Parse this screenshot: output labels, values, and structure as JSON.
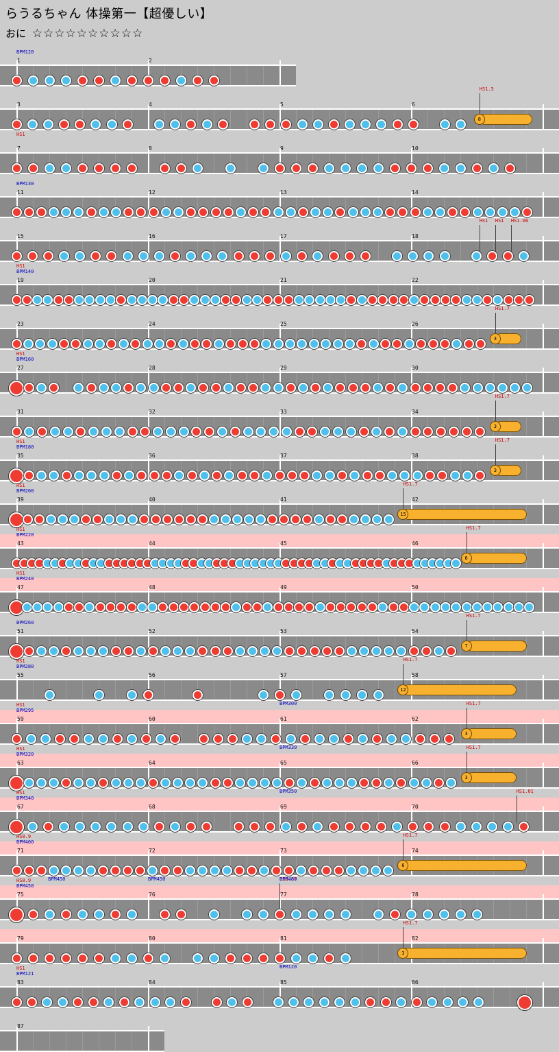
{
  "title": "らうるちゃん 体操第一【超優しい】",
  "course_label": "おに",
  "stars": "☆☆☆☆☆☆☆☆☆☆",
  "colors": {
    "don": "#ee3c32",
    "ka": "#4fc0ec",
    "roll": "#f7b12e",
    "lane": "#8a8a8a",
    "gogo": "#ffc4c4",
    "hs": "#d00000",
    "bpm": "#0000c0"
  },
  "rows": [
    {
      "width": 408,
      "measures": [
        "1",
        "2"
      ],
      "pattern": "rbbbrrbrrrbrr",
      "tags": [
        {
          "type": "bpm",
          "text": "BPM120",
          "at": 0
        }
      ]
    },
    {
      "measures": [
        "3",
        "4",
        "5",
        "6"
      ],
      "pattern": "rbbrrbbr bbrbr rrrbbrbbbrr bb",
      "roll": {
        "count": "8",
        "start": 0.88,
        "end": 0.98
      },
      "tags": [
        {
          "type": "hs",
          "text": "HS1.5",
          "at": 0.88
        }
      ]
    },
    {
      "measures": [
        "7",
        "8",
        "9",
        "10"
      ],
      "pattern": "rrbbrrrr rrb b brrrbbbbrrrbbrbr",
      "tags": [
        {
          "type": "hs",
          "text": "HS1",
          "at": 0
        }
      ]
    },
    {
      "measures": [
        "11",
        "12",
        "13",
        "14"
      ],
      "pattern": "rrrbbbrbbrrrbbrrrrbrrbbrbbrbbbrrrbbrrbbbbr",
      "tags": [
        {
          "type": "bpm",
          "text": "BPM130",
          "at": 0
        }
      ]
    },
    {
      "measures": [
        "15",
        "16",
        "17",
        "18"
      ],
      "pattern": "rrrbbrrbbbrbbbrrrbrbrrr bbbb brrb",
      "tags": [
        {
          "type": "hs",
          "text": "HS1",
          "at": 0.88
        },
        {
          "type": "hs",
          "text": "HS1",
          "at": 0.91
        },
        {
          "type": "hs",
          "text": "HS1.06",
          "at": 0.94
        }
      ]
    },
    {
      "measures": [
        "19",
        "20",
        "21",
        "22"
      ],
      "pattern": "rrbbrrbbbbrbbbbrrbbbrrbbrrrbbbbbrbrrrrbrrrrbbrbrrr",
      "tags": [
        {
          "type": "hs",
          "text": "HS1",
          "at": 0
        },
        {
          "type": "bpm",
          "text": "BPM140",
          "at": 0
        }
      ]
    },
    {
      "measures": [
        "23",
        "24",
        "25",
        "26"
      ],
      "pattern": "rbbbrrbbrbrbbrbrrbrrrbbbbbbbbrbrrbrrrbrr",
      "roll": {
        "count": "3",
        "start": 0.91,
        "end": 0.96
      },
      "tags": [
        {
          "type": "hs",
          "text": "HS1.7",
          "at": 0.91
        }
      ]
    },
    {
      "measures": [
        "27",
        "28",
        "29",
        "30"
      ],
      "pattern": "Rrbr brbbrbbrrbrrbrrbbrbrbrrrbrbrrrrbbbbbb",
      "tags": [
        {
          "type": "hs",
          "text": "HS1",
          "at": 0
        },
        {
          "type": "bpm",
          "text": "BPM160",
          "at": 0
        }
      ]
    },
    {
      "measures": [
        "31",
        "32",
        "33",
        "34"
      ],
      "pattern": "rbrbbrbbbrrbbbrrbrbbbbrrbbbrbrbrrrrrr",
      "roll": {
        "count": "3",
        "start": 0.91,
        "end": 0.96
      },
      "tags": [
        {
          "type": "hs",
          "text": "HS1.7",
          "at": 0.91
        }
      ]
    },
    {
      "measures": [
        "35",
        "36",
        "37",
        "38"
      ],
      "pattern": "Rrbbrbbbrbrrrbrbrbrrbrrrbbrbrrbbbrrbbr",
      "roll": {
        "count": "3",
        "start": 0.91,
        "end": 0.96
      },
      "tags": [
        {
          "type": "hs",
          "text": "HS1",
          "at": 0
        },
        {
          "type": "bpm",
          "text": "BPM180",
          "at": 0
        },
        {
          "type": "hs",
          "text": "HS1.7",
          "at": 0.91
        }
      ]
    },
    {
      "measures": [
        "39",
        "40",
        "41",
        "42"
      ],
      "pattern": "Rrrbbbrrbbbrrrrrrbbbbbrrrrbrrbbbb",
      "roll": {
        "count": "15",
        "start": 0.735,
        "end": 0.97
      },
      "tags": [
        {
          "type": "hs",
          "text": "HS1",
          "at": 0
        },
        {
          "type": "bpm",
          "text": "BPM200",
          "at": 0
        },
        {
          "type": "hs",
          "text": "HS1.7",
          "at": 0.735
        }
      ]
    },
    {
      "gogo": true,
      "measures": [
        "43",
        "44",
        "45",
        "46"
      ],
      "pattern": "rrrrbbrbbrbbrrrrrrbbbbrrbbrrrbbbbbbrrrrbbrbbrrrrbrrrbbbbbb",
      "roll": {
        "count": "6",
        "start": 0.855,
        "end": 0.97
      },
      "tags": [
        {
          "type": "hs",
          "text": "HS1",
          "at": 0
        },
        {
          "type": "bpm",
          "text": "BPM220",
          "at": 0
        },
        {
          "type": "hs",
          "text": "HS1.7",
          "at": 0.855
        }
      ]
    },
    {
      "gogo": true,
      "measures": [
        "47",
        "48",
        "49",
        "50"
      ],
      "pattern": "Rbbbbrrbrrrrbbrrrrrrrbrrbrrrrbrrrrrbrrbbbbbbbbbbbb",
      "tags": [
        {
          "type": "hs",
          "text": "HS1",
          "at": 0
        },
        {
          "type": "bpm",
          "text": "BPM240",
          "at": 0
        }
      ]
    },
    {
      "measures": [
        "51",
        "52",
        "53",
        "54"
      ],
      "pattern": "Rrbbrbbbrrbrbbbrrrbbbbrrrrrbbbbbrrbr",
      "roll": {
        "count": "7",
        "start": 0.855,
        "end": 0.97
      },
      "tags": [
        {
          "type": "bpm",
          "text": "BPM260",
          "at": 0
        },
        {
          "type": "hs",
          "text": "HS1.7",
          "at": 0.855
        }
      ]
    },
    {
      "measures": [
        "55",
        "56",
        "57",
        "58"
      ],
      "pattern": "  b  b br  r   brb bbbb",
      "roll": {
        "count": "12",
        "start": 0.735,
        "end": 0.95
      },
      "tags": [
        {
          "type": "hs",
          "text": "HS1",
          "at": 0
        },
        {
          "type": "bpm",
          "text": "BPM280",
          "at": 0
        },
        {
          "type": "hs",
          "text": "HS1.7",
          "at": 0.735
        }
      ]
    },
    {
      "gogo": true,
      "measures": [
        "59",
        "60",
        "61",
        "62"
      ],
      "pattern": "rbbrrbbrbrbr rrrbbrbrbbrbrbbrrr",
      "roll": {
        "count": "3",
        "start": 0.855,
        "end": 0.95
      },
      "tags": [
        {
          "type": "hs",
          "text": "HS1",
          "at": 0
        },
        {
          "type": "bpm",
          "text": "BPM295",
          "at": 0
        },
        {
          "type": "bpm",
          "text": "BPM300",
          "at": 0.5
        },
        {
          "type": "hs",
          "text": "HS1.7",
          "at": 0.855
        }
      ]
    },
    {
      "gogo": true,
      "measures": [
        "63",
        "64",
        "65",
        "66"
      ],
      "pattern": "Rbbbrbbrbbbrbbbbrrbbbbrbrbbbrrbrbbrb",
      "roll": {
        "count": "3",
        "start": 0.855,
        "end": 0.95
      },
      "tags": [
        {
          "type": "hs",
          "text": "HS1",
          "at": 0
        },
        {
          "type": "bpm",
          "text": "BPM320",
          "at": 0
        },
        {
          "type": "bpm",
          "text": "BPM330",
          "at": 0.5
        },
        {
          "type": "hs",
          "text": "HS1.7",
          "at": 0.855
        }
      ]
    },
    {
      "gogo": true,
      "measures": [
        "67",
        "68",
        "69",
        "70"
      ],
      "pattern": "Rbrbbbbbbrbrr rrrbrbrrrrbrrrbbbbr",
      "tags": [
        {
          "type": "hs",
          "text": "HS1",
          "at": 0
        },
        {
          "type": "bpm",
          "text": "BPM340",
          "at": 0
        },
        {
          "type": "bpm",
          "text": "BPM350",
          "at": 0.5
        },
        {
          "type": "hs",
          "text": "HS1.01",
          "at": 0.95
        }
      ]
    },
    {
      "gogo": true,
      "measures": [
        "71",
        "72",
        "73",
        "74"
      ],
      "pattern": "rrrbbbbrrrrbrrbbbbrrbrrbrrrbbbb",
      "roll": {
        "count": "6",
        "start": 0.735,
        "end": 0.97
      },
      "tags": [
        {
          "type": "hs",
          "text": "HS0.9",
          "at": 0
        },
        {
          "type": "bpm",
          "text": "BPM400",
          "at": 0
        },
        {
          "type": "hs",
          "text": "HS1.7",
          "at": 0.735
        }
      ]
    },
    {
      "gogo": true,
      "measures": [
        "75",
        "76",
        "77",
        "78"
      ],
      "pattern": "Rrbrbbrb rr b bbrbbbb brbbbbb",
      "tags": [
        {
          "type": "hs",
          "text": "HS0.9",
          "at": 0
        },
        {
          "type": "bpm",
          "text": "BPM450",
          "at": 0
        },
        {
          "type": "bpm",
          "text": "BPM450",
          "at": 0.06
        },
        {
          "type": "bpm",
          "text": "BPM450",
          "at": 0.25
        },
        {
          "type": "hs",
          "text": "HS0.87",
          "at": 0.5
        },
        {
          "type": "bpm",
          "text": "BPM480",
          "at": 0.5
        }
      ]
    },
    {
      "gogo": true,
      "measures": [
        "79",
        "80",
        "81",
        "82"
      ],
      "pattern": "rrrrrrbbrb bbrrrrbbrb",
      "roll": {
        "count": "3",
        "start": 0.735,
        "end": 0.97
      },
      "tags": [
        {
          "type": "hs",
          "text": "HS1.7",
          "at": 0.735
        }
      ]
    },
    {
      "measures": [
        "83",
        "84",
        "85",
        "86"
      ],
      "pattern": "rrbbrrbrbbbr rbr bbbbbbrrbrbbbb  R",
      "tags": [
        {
          "type": "hs",
          "text": "HS1",
          "at": 0
        },
        {
          "type": "bpm",
          "text": "BPM121",
          "at": 0
        },
        {
          "type": "bpm",
          "text": "BPM120",
          "at": 0.5
        }
      ]
    },
    {
      "width": 216,
      "measures": [
        "87"
      ],
      "pattern": "",
      "tags": []
    }
  ]
}
